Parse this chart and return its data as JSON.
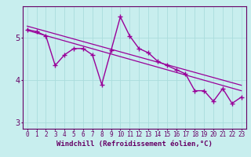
{
  "title": "",
  "xlabel": "Windchill (Refroidissement éolien,°C)",
  "ylabel": "",
  "bg_color": "#c8eeee",
  "line_color": "#990099",
  "grid_color": "#aadddd",
  "axis_color": "#660066",
  "x_values": [
    0,
    1,
    2,
    3,
    4,
    5,
    6,
    7,
    8,
    9,
    10,
    11,
    12,
    13,
    14,
    15,
    16,
    17,
    18,
    19,
    20,
    21,
    22,
    23
  ],
  "y_values": [
    5.2,
    5.15,
    5.05,
    4.35,
    4.6,
    4.75,
    4.75,
    4.6,
    3.9,
    4.7,
    5.5,
    5.05,
    4.75,
    4.65,
    4.45,
    4.35,
    4.25,
    4.15,
    3.75,
    3.75,
    3.5,
    3.8,
    3.45,
    3.6
  ],
  "trend1_x": [
    0,
    23
  ],
  "trend1_y": [
    5.28,
    3.88
  ],
  "trend2_x": [
    0,
    23
  ],
  "trend2_y": [
    5.18,
    3.75
  ],
  "ylim": [
    2.85,
    5.75
  ],
  "xlim": [
    -0.5,
    23.5
  ],
  "yticks": [
    3,
    4,
    5
  ],
  "xticks": [
    0,
    1,
    2,
    3,
    4,
    5,
    6,
    7,
    8,
    9,
    10,
    11,
    12,
    13,
    14,
    15,
    16,
    17,
    18,
    19,
    20,
    21,
    22,
    23
  ],
  "marker": "+",
  "markersize": 5,
  "linewidth": 1.0,
  "xlabel_fontsize": 6.5,
  "tick_fontsize": 5.5
}
